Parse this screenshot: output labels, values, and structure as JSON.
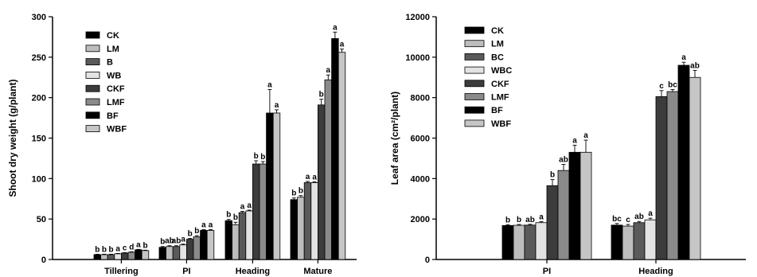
{
  "colors": {
    "CK": "#000000",
    "LM": "#bdbdbd",
    "B": "#5a5a5a",
    "WB": "#e3e3e3",
    "CKF": "#3c3c3c",
    "LMF": "#8a8a8a",
    "BF": "#000000",
    "WBF": "#c6c6c6"
  },
  "chart_data": [
    {
      "type": "bar",
      "title": "",
      "xlabel": "",
      "ylabel": "Shoot dry weight (g/plant)",
      "ylim": [
        0,
        300
      ],
      "yticks": [
        0,
        50,
        100,
        150,
        200,
        250,
        300
      ],
      "legend_position": "top-left",
      "grid": false,
      "categories": [
        "Tillering",
        "PI",
        "Heading",
        "Mature"
      ],
      "series": [
        {
          "name": "CK",
          "values": [
            6,
            15,
            48,
            74
          ],
          "errors": [
            0.5,
            1,
            1.5,
            2
          ],
          "labels": [
            "b",
            "b",
            "b",
            "b"
          ]
        },
        {
          "name": "LM",
          "values": [
            6,
            16,
            43,
            77
          ],
          "errors": [
            0.5,
            1,
            3,
            2
          ],
          "labels": [
            "b",
            "ab",
            "b",
            "b"
          ]
        },
        {
          "name": "B",
          "values": [
            6,
            16,
            58,
            95
          ],
          "errors": [
            0.5,
            1,
            1.5,
            1.5
          ],
          "labels": [
            "b",
            "ab",
            "a",
            "a"
          ]
        },
        {
          "name": "WB",
          "values": [
            7,
            18,
            60,
            95
          ],
          "errors": [
            0.5,
            1,
            1,
            1
          ],
          "labels": [
            "a",
            "a",
            "a",
            "a"
          ]
        },
        {
          "name": "CKF",
          "values": [
            8,
            25,
            118,
            191
          ],
          "errors": [
            0.5,
            1,
            4,
            7
          ],
          "labels": [
            "c",
            "b",
            "b",
            "b"
          ]
        },
        {
          "name": "LMF",
          "values": [
            9,
            28,
            118,
            222
          ],
          "errors": [
            0.5,
            1.5,
            3,
            6
          ],
          "labels": [
            "d",
            "b",
            "b",
            "a"
          ]
        },
        {
          "name": "BF",
          "values": [
            12,
            36,
            181,
            273
          ],
          "errors": [
            0.5,
            1,
            29,
            8
          ],
          "labels": [
            "a",
            "a",
            "a",
            "a"
          ]
        },
        {
          "name": "WBF",
          "values": [
            11,
            36,
            181,
            256
          ],
          "errors": [
            0.5,
            1,
            4,
            4
          ],
          "labels": [
            "b",
            "a",
            "a",
            "a"
          ]
        }
      ]
    },
    {
      "type": "bar",
      "title": "",
      "xlabel": "",
      "ylabel": "Leaf area (cm²/plant)",
      "ylim": [
        0,
        12000
      ],
      "yticks": [
        0,
        2000,
        4000,
        6000,
        8000,
        10000,
        12000
      ],
      "legend_position": "top-left",
      "grid": false,
      "categories": [
        "PI",
        "Heading"
      ],
      "series": [
        {
          "name": "CK",
          "values": [
            1680,
            1700
          ],
          "errors": [
            40,
            80
          ],
          "labels": [
            "b",
            "bc"
          ]
        },
        {
          "name": "LM",
          "values": [
            1690,
            1650
          ],
          "errors": [
            40,
            80
          ],
          "labels": [
            "b",
            "c"
          ]
        },
        {
          "name": "BC",
          "values": [
            1700,
            1820
          ],
          "errors": [
            40,
            60
          ],
          "labels": [
            "ab",
            "ab"
          ]
        },
        {
          "name": "WBC",
          "values": [
            1820,
            1960
          ],
          "errors": [
            50,
            80
          ],
          "labels": [
            "a",
            "a"
          ]
        },
        {
          "name": "CKF",
          "values": [
            3650,
            8050
          ],
          "errors": [
            300,
            300
          ],
          "labels": [
            "b",
            "c"
          ]
        },
        {
          "name": "LMF",
          "values": [
            4400,
            8300
          ],
          "errors": [
            300,
            100
          ],
          "labels": [
            "ab",
            "bc"
          ]
        },
        {
          "name": "BF",
          "values": [
            5300,
            9600
          ],
          "errors": [
            350,
            150
          ],
          "labels": [
            "a",
            "a"
          ]
        },
        {
          "name": "WBF",
          "values": [
            5300,
            9000
          ],
          "errors": [
            600,
            350
          ],
          "labels": [
            "a",
            "ab"
          ]
        }
      ]
    }
  ]
}
